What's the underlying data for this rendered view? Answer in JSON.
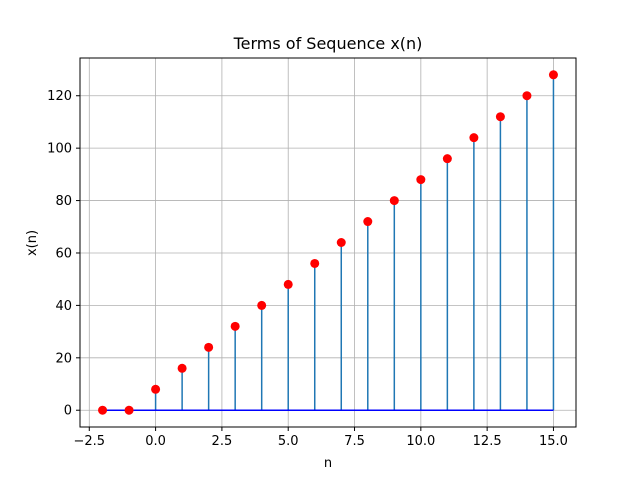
{
  "chart_data": {
    "type": "stem",
    "title": "Terms of Sequence x(n)",
    "xlabel": "n",
    "ylabel": "x(n)",
    "xlim": [
      -2.85,
      15.85
    ],
    "ylim": [
      -6.4,
      134.4
    ],
    "grid": true,
    "x_ticks": [
      -2.5,
      0.0,
      2.5,
      5.0,
      7.5,
      10.0,
      12.5,
      15.0
    ],
    "x_tick_labels": [
      "−2.5",
      "0.0",
      "2.5",
      "5.0",
      "7.5",
      "10.0",
      "12.5",
      "15.0"
    ],
    "y_ticks": [
      0,
      20,
      40,
      60,
      80,
      100,
      120
    ],
    "y_tick_labels": [
      "0",
      "20",
      "40",
      "60",
      "80",
      "100",
      "120"
    ],
    "x": [
      -2,
      -1,
      0,
      1,
      2,
      3,
      4,
      5,
      6,
      7,
      8,
      9,
      10,
      11,
      12,
      13,
      14,
      15
    ],
    "values": [
      0,
      0,
      8,
      16,
      24,
      32,
      40,
      48,
      56,
      64,
      72,
      80,
      88,
      96,
      104,
      112,
      120,
      128
    ],
    "colors": {
      "stem": "#1f77b4",
      "marker": "#ff0000",
      "baseline": "#0000ff",
      "grid": "#b0b0b0",
      "axes": "#000000"
    }
  }
}
